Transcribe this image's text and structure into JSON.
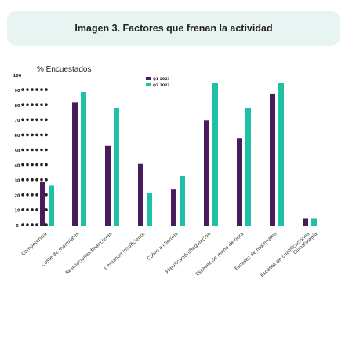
{
  "header": {
    "title": "Imagen 3. Factores que frenan la actividad"
  },
  "chart_data": {
    "type": "bar",
    "title": "Imagen 3. Factores que frenan la actividad",
    "ylabel": "% Encuestados",
    "xlabel": "",
    "ylim": [
      0,
      100
    ],
    "yticks": [
      0,
      10,
      20,
      30,
      40,
      50,
      60,
      70,
      80,
      90,
      100
    ],
    "grid": false,
    "legend": "top-center",
    "categories": [
      "Competencia",
      "Coste de materiales",
      "Restricciones financieras",
      "Demanda insuficiente",
      "Cobro a clientes",
      "Planificación/Regulación",
      "Escasez de mano de obra",
      "Escasez de materiales",
      "Escasez de cualificaciones",
      "Climatología"
    ],
    "series": [
      {
        "name": "Q1 2023",
        "color": "#4a1b5c",
        "values": [
          29,
          82,
          53,
          41,
          24,
          70,
          58,
          88,
          5,
          5
        ]
      },
      {
        "name": "Q2 2023",
        "color": "#1fc1a6",
        "values": [
          27,
          89,
          78,
          22,
          33,
          95,
          78,
          95,
          0,
          5
        ]
      }
    ],
    "bar_pairs": [
      {
        "q1": 29,
        "q2": 27
      },
      {
        "q1": 82,
        "q2": 89
      },
      {
        "q1": 53,
        "q2": 78
      },
      {
        "q1": 41,
        "q2": 22
      },
      {
        "q1": 24,
        "q2": 33
      },
      {
        "q1": 70,
        "q2": 95
      },
      {
        "q1": 58,
        "q2": 78
      },
      {
        "q1": 88,
        "q2": 95
      },
      {
        "q1": 5,
        "q2": 5
      }
    ]
  }
}
